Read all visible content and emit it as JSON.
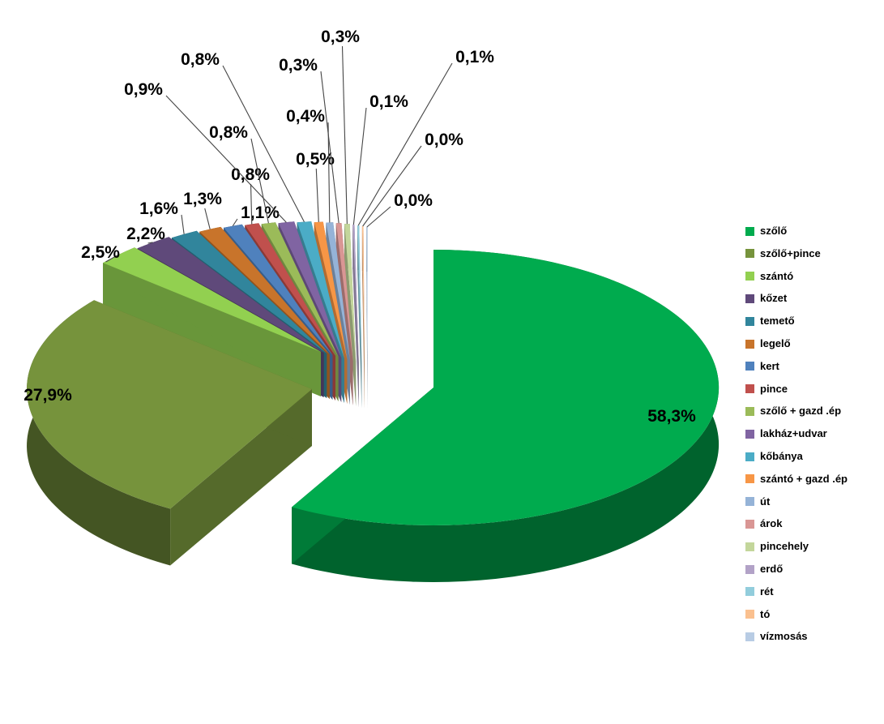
{
  "chart_data": {
    "type": "pie",
    "style": "3d-exploded",
    "title": "",
    "unit": "percent",
    "decimal_separator": ",",
    "background": "#FFFFFF",
    "legend_position": "right",
    "data_label_color": "#000000",
    "slices": [
      {
        "name": "szőlő",
        "value_pct": 58.3,
        "label": "58,3%",
        "color": "#00AB4E"
      },
      {
        "name": "szőlő+pince",
        "value_pct": 27.9,
        "label": "27,9%",
        "color": "#76933C"
      },
      {
        "name": "szántó",
        "value_pct": 2.5,
        "label": "2,5%",
        "color": "#92D050"
      },
      {
        "name": "kőzet",
        "value_pct": 2.2,
        "label": "2,2%",
        "color": "#5F497A"
      },
      {
        "name": "temető",
        "value_pct": 1.6,
        "label": "1,6%",
        "color": "#31859C"
      },
      {
        "name": "legelő",
        "value_pct": 1.3,
        "label": "1,3%",
        "color": "#C8742B"
      },
      {
        "name": "kert",
        "value_pct": 1.1,
        "label": "1,1%",
        "color": "#4F81BD"
      },
      {
        "name": "pince",
        "value_pct": 0.8,
        "label": "0,8%",
        "color": "#C0504D"
      },
      {
        "name": "szőlő + gazd .ép",
        "value_pct": 0.8,
        "label": "0,8%",
        "color": "#9BBB59"
      },
      {
        "name": "lakház+udvar",
        "value_pct": 0.9,
        "label": "0,9%",
        "color": "#8064A2"
      },
      {
        "name": "kőbánya",
        "value_pct": 0.8,
        "label": "0,8%",
        "color": "#4BACC6"
      },
      {
        "name": "szántó + gazd .ép",
        "value_pct": 0.5,
        "label": "0,5%",
        "color": "#F79646"
      },
      {
        "name": "út",
        "value_pct": 0.4,
        "label": "0,4%",
        "color": "#95B3D7"
      },
      {
        "name": "árok",
        "value_pct": 0.3,
        "label": "0,3%",
        "color": "#D99694"
      },
      {
        "name": "pincehely",
        "value_pct": 0.3,
        "label": "0,3%",
        "color": "#C3D69B"
      },
      {
        "name": "erdő",
        "value_pct": 0.1,
        "label": "0,1%",
        "color": "#B2A2C7"
      },
      {
        "name": "rét",
        "value_pct": 0.1,
        "label": "0,1%",
        "color": "#92CDDC"
      },
      {
        "name": "tó",
        "value_pct": 0.0,
        "label": "0,0%",
        "color": "#FAC08F"
      },
      {
        "name": "vízmosás",
        "value_pct": 0.0,
        "label": "0,0%",
        "color": "#B8CCE4"
      }
    ]
  }
}
